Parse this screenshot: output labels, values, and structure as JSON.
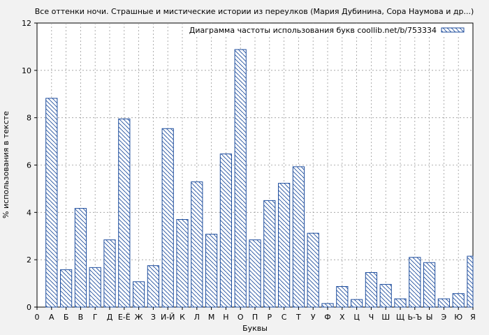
{
  "chart_data": {
    "type": "bar",
    "title": "Все оттенки ночи. Страшные и мистические истории из переулков (Мария Дубинина, Сора Наумова и др...)",
    "xlabel": "Буквы",
    "ylabel": "% использования в тексте",
    "ylim": [
      0,
      12
    ],
    "yticks": [
      "0",
      "2",
      "4",
      "6",
      "8",
      "10",
      "12"
    ],
    "x_first_tick": "0",
    "grid": true,
    "legend_position": "top-right",
    "colors": {
      "bar": "#1f4e9e",
      "background": "#f2f2f2",
      "plot": "#ffffff",
      "grid": "#9a9a9a"
    },
    "series": [
      {
        "name": "Диаграмма частоты использования букв coollib.net/b/753334",
        "values": [
          8.82,
          1.58,
          4.17,
          1.67,
          2.84,
          7.95,
          1.07,
          1.75,
          7.54,
          3.7,
          5.29,
          3.08,
          6.47,
          10.88,
          2.84,
          4.5,
          5.23,
          5.93,
          3.12,
          0.15,
          0.87,
          0.32,
          1.46,
          0.96,
          0.35,
          2.1,
          1.88,
          0.35,
          0.57,
          2.15
        ]
      }
    ],
    "categories": [
      "А",
      "Б",
      "В",
      "Г",
      "Д",
      "Е-Ё",
      "Ж",
      "З",
      "И-Й",
      "К",
      "Л",
      "М",
      "Н",
      "О",
      "П",
      "Р",
      "С",
      "Т",
      "У",
      "Ф",
      "Х",
      "Ц",
      "Ч",
      "Ш",
      "Щ",
      "Ь-Ъ",
      "Ы",
      "Э",
      "Ю",
      "Я"
    ]
  }
}
